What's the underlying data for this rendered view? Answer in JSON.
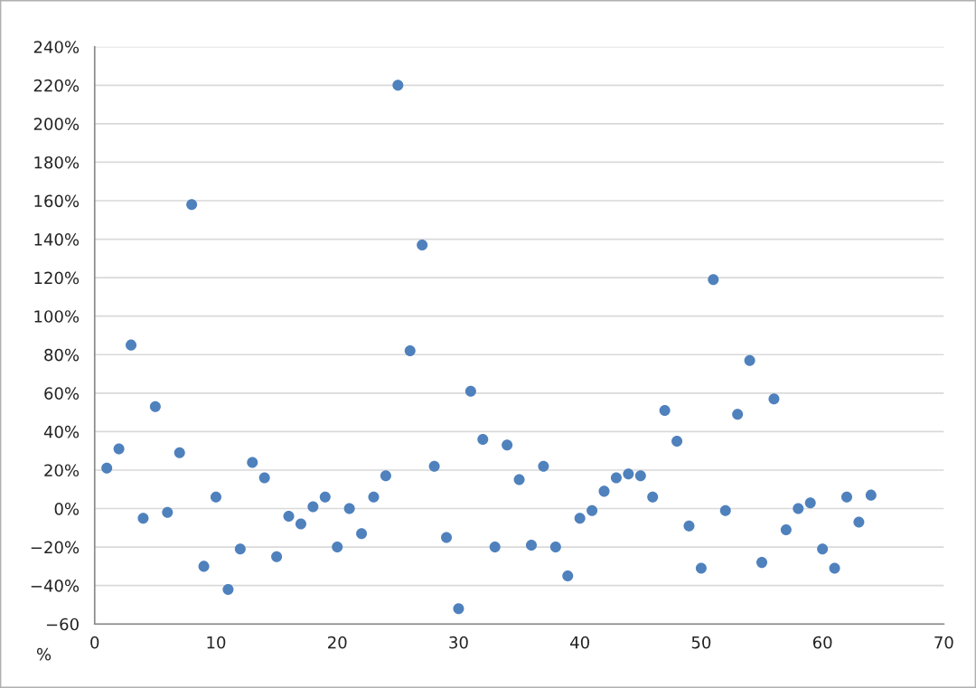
{
  "chart_data": {
    "type": "scatter",
    "x": [
      1,
      2,
      3,
      4,
      5,
      6,
      7,
      8,
      9,
      10,
      11,
      12,
      13,
      14,
      15,
      16,
      17,
      18,
      19,
      20,
      21,
      22,
      23,
      24,
      25,
      26,
      27,
      28,
      29,
      30,
      31,
      32,
      33,
      34,
      35,
      36,
      37,
      38,
      39,
      40,
      41,
      42,
      43,
      44,
      45,
      46,
      47,
      48,
      49,
      50,
      51,
      52,
      53,
      54,
      55,
      56,
      57,
      58,
      59,
      60,
      61,
      62,
      63,
      64
    ],
    "series": [
      {
        "color": "#4f81bd",
        "values": [
          21,
          31,
          85,
          -5,
          53,
          -2,
          29,
          158,
          -30,
          6,
          -42,
          -21,
          24,
          16,
          -25,
          -4,
          -8,
          1,
          6,
          -20,
          0,
          -13,
          6,
          17,
          220,
          82,
          137,
          22,
          -15,
          -52,
          61,
          36,
          -20,
          33,
          15,
          -19,
          22,
          -20,
          -35,
          -5,
          -1,
          9,
          16,
          18,
          17,
          6,
          51,
          35,
          -9,
          -31,
          119,
          -1,
          49,
          77,
          -28,
          57,
          -11,
          0,
          3,
          -21,
          -31,
          6,
          -7,
          7
        ]
      }
    ],
    "xlim": [
      0,
      70
    ],
    "xticks": [
      0,
      10,
      20,
      30,
      40,
      50,
      60,
      70
    ],
    "ylim": [
      -60,
      240
    ],
    "yticks": [
      {
        "value": -60,
        "label": "−60"
      },
      {
        "value": -40,
        "label": "−40%"
      },
      {
        "value": -20,
        "label": "−20%"
      },
      {
        "value": 0,
        "label": "0%"
      },
      {
        "value": 20,
        "label": "20%"
      },
      {
        "value": 40,
        "label": "40%"
      },
      {
        "value": 60,
        "label": "60%"
      },
      {
        "value": 80,
        "label": "80%"
      },
      {
        "value": 100,
        "label": "100%"
      },
      {
        "value": 120,
        "label": "120%"
      },
      {
        "value": 140,
        "label": "140%"
      },
      {
        "value": 160,
        "label": "160%"
      },
      {
        "value": 180,
        "label": "180%"
      },
      {
        "value": 200,
        "label": "200%"
      },
      {
        "value": 220,
        "label": "220%"
      },
      {
        "value": 240,
        "label": "240%"
      }
    ],
    "annotations": [
      "%"
    ],
    "grid": "y",
    "legend": false,
    "marker": "circle"
  }
}
